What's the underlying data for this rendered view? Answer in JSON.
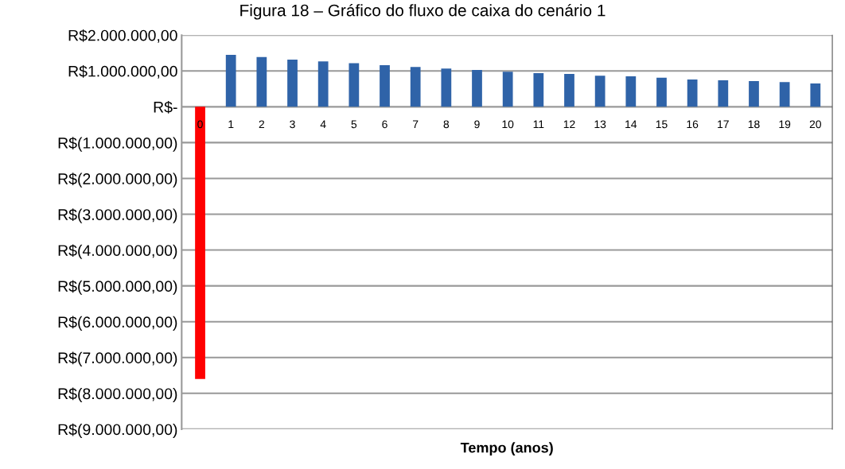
{
  "chart_data": {
    "type": "bar",
    "title": "Figura 18 – Gráfico do fluxo de caixa do cenário 1",
    "xlabel": "Tempo (anos)",
    "categories": [
      "0",
      "1",
      "2",
      "3",
      "4",
      "5",
      "6",
      "7",
      "8",
      "9",
      "10",
      "11",
      "12",
      "13",
      "14",
      "15",
      "16",
      "17",
      "18",
      "19",
      "20"
    ],
    "values": [
      -7600000,
      1450000,
      1390000,
      1320000,
      1270000,
      1220000,
      1160000,
      1110000,
      1070000,
      1030000,
      980000,
      940000,
      920000,
      870000,
      850000,
      810000,
      760000,
      740000,
      720000,
      690000,
      650000
    ],
    "colors": [
      "#ff0000",
      "#2f63a8",
      "#2f63a8",
      "#2f63a8",
      "#2f63a8",
      "#2f63a8",
      "#2f63a8",
      "#2f63a8",
      "#2f63a8",
      "#2f63a8",
      "#2f63a8",
      "#2f63a8",
      "#2f63a8",
      "#2f63a8",
      "#2f63a8",
      "#2f63a8",
      "#2f63a8",
      "#2f63a8",
      "#2f63a8",
      "#2f63a8",
      "#2f63a8"
    ],
    "ylim": [
      -9000000,
      2000000
    ],
    "yticks": [
      {
        "value": 2000000,
        "label": "R$2.000.000,00"
      },
      {
        "value": 1000000,
        "label": "R$1.000.000,00"
      },
      {
        "value": 0,
        "label": "R$-"
      },
      {
        "value": -1000000,
        "label": "R$(1.000.000,00)"
      },
      {
        "value": -2000000,
        "label": "R$(2.000.000,00)"
      },
      {
        "value": -3000000,
        "label": "R$(3.000.000,00)"
      },
      {
        "value": -4000000,
        "label": "R$(4.000.000,00)"
      },
      {
        "value": -5000000,
        "label": "R$(5.000.000,00)"
      },
      {
        "value": -6000000,
        "label": "R$(6.000.000,00)"
      },
      {
        "value": -7000000,
        "label": "R$(7.000.000,00)"
      },
      {
        "value": -8000000,
        "label": "R$(8.000.000,00)"
      },
      {
        "value": -9000000,
        "label": "R$(9.000.000,00)"
      }
    ],
    "grid": "y"
  }
}
